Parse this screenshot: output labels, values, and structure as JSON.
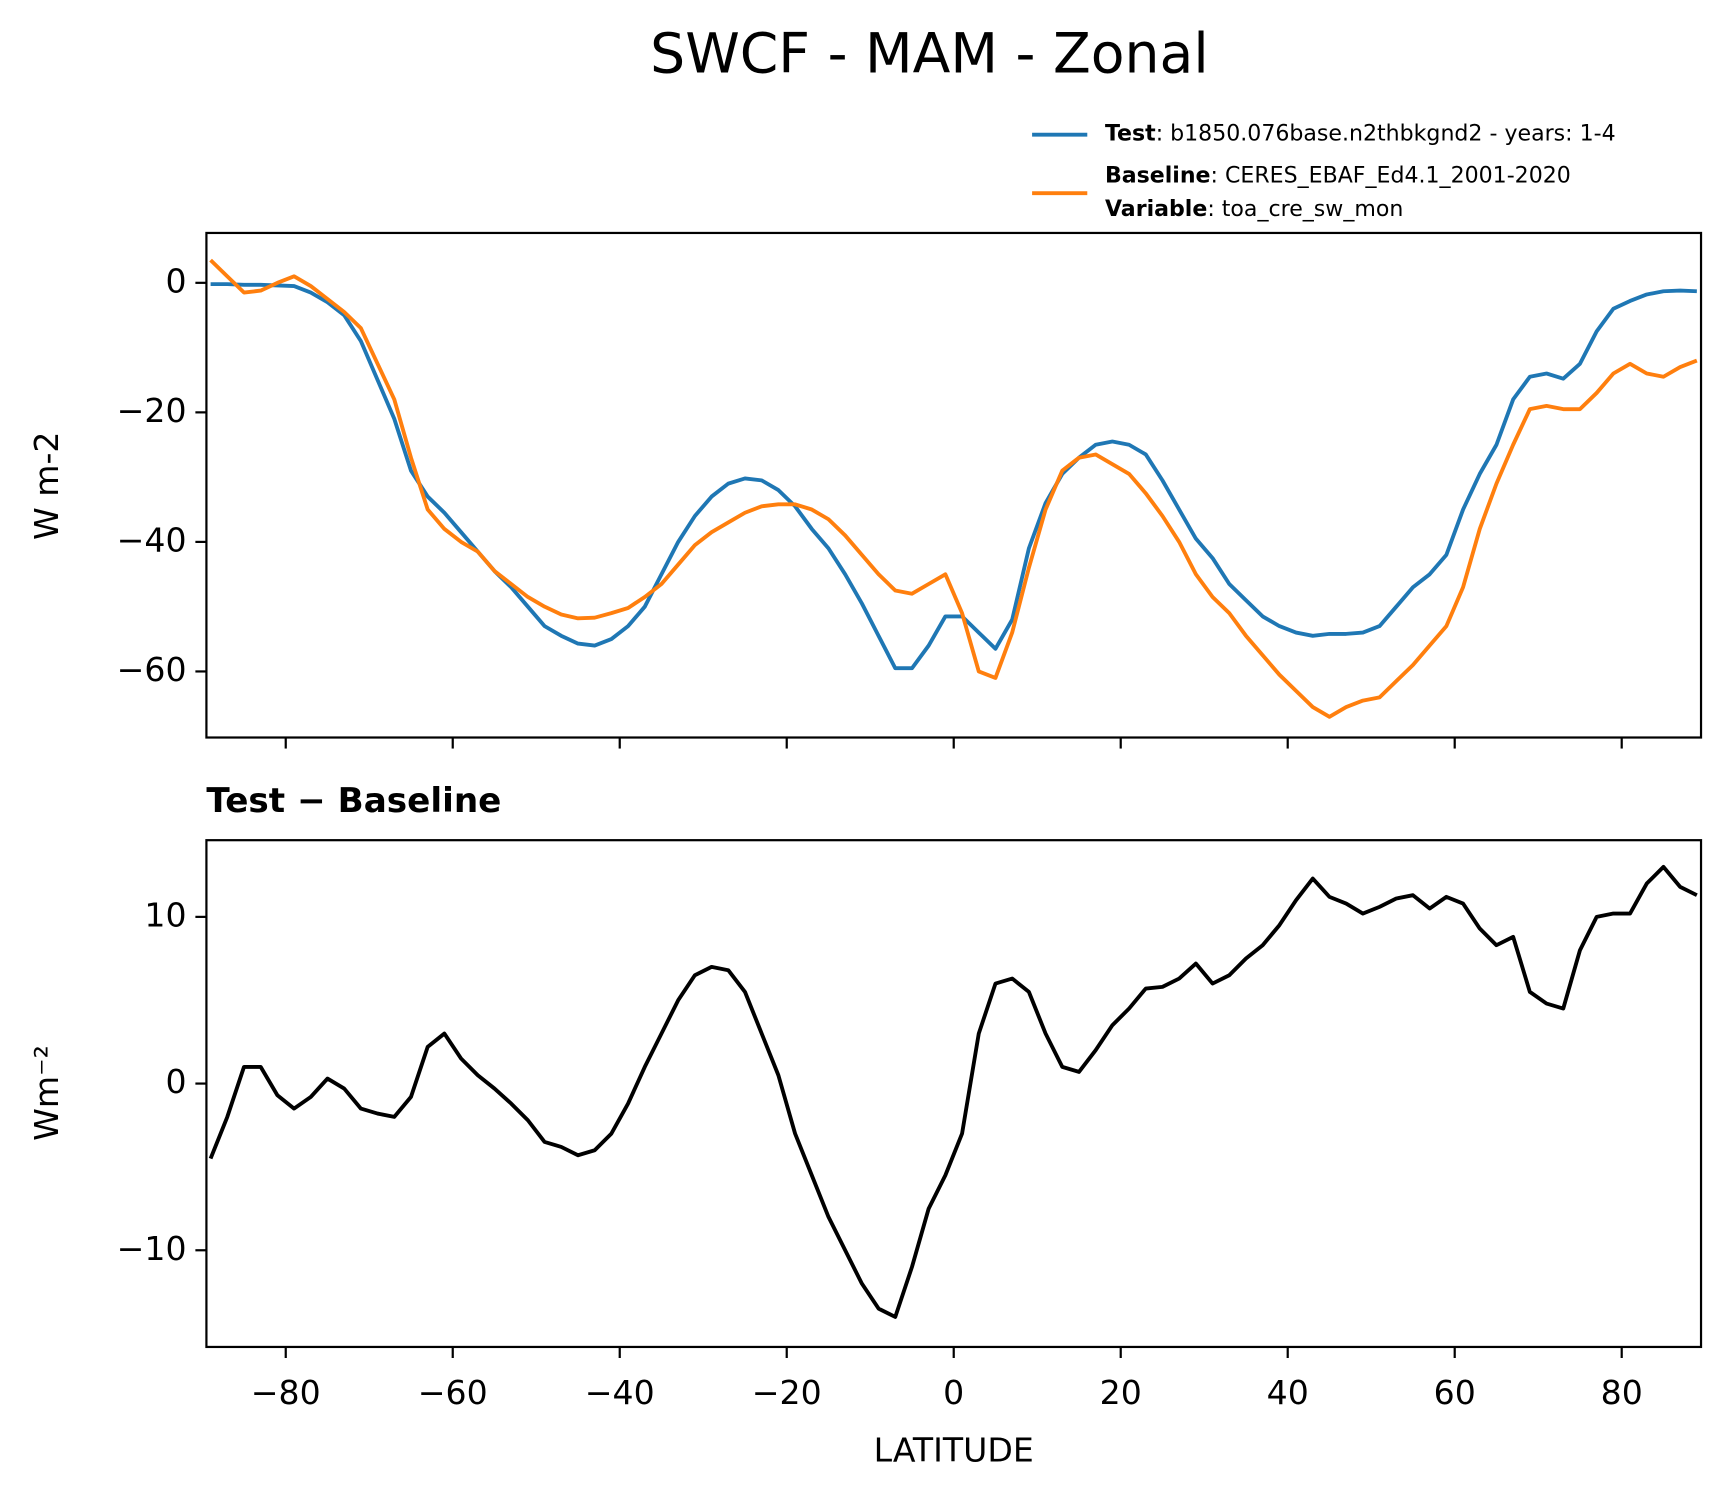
{
  "chart_data": [
    {
      "type": "line",
      "title": "SWCF - MAM - Zonal",
      "y_label": "W m-2",
      "x": [
        -89,
        -87,
        -85,
        -83,
        -81,
        -79,
        -77,
        -75,
        -73,
        -71,
        -69,
        -67,
        -65,
        -63,
        -61,
        -59,
        -57,
        -55,
        -53,
        -51,
        -49,
        -47,
        -45,
        -43,
        -41,
        -39,
        -37,
        -35,
        -33,
        -31,
        -29,
        -27,
        -25,
        -23,
        -21,
        -19,
        -17,
        -15,
        -13,
        -11,
        -9,
        -7,
        -5,
        -3,
        -1,
        1,
        3,
        5,
        7,
        9,
        11,
        13,
        15,
        17,
        19,
        21,
        23,
        25,
        27,
        29,
        31,
        33,
        35,
        37,
        39,
        41,
        43,
        45,
        47,
        49,
        51,
        53,
        55,
        57,
        59,
        61,
        63,
        65,
        67,
        69,
        71,
        73,
        75,
        77,
        79,
        81,
        83,
        85,
        87,
        89
      ],
      "series": [
        {
          "name": "Test",
          "label": ": b1850.076base.n2thbkgnd2 - years: 1-4",
          "color": "#1f77b4",
          "values": [
            -0.2,
            -0.2,
            -0.3,
            -0.3,
            -0.4,
            -0.5,
            -1.5,
            -3,
            -5,
            -9,
            -15,
            -21,
            -29,
            -33,
            -35.5,
            -38.5,
            -41.5,
            -44.5,
            -47,
            -50,
            -53,
            -54.5,
            -55.7,
            -56,
            -55,
            -53,
            -50,
            -45,
            -40,
            -36,
            -33,
            -31,
            -30.2,
            -30.5,
            -32,
            -34.5,
            -38,
            -41,
            -45,
            -49.5,
            -54.5,
            -59.5,
            -59.5,
            -56,
            -51.5,
            -51.5,
            -54,
            -56.5,
            -52,
            -41,
            -34,
            -29.5,
            -27,
            -25,
            -24.5,
            -25,
            -26.5,
            -30.5,
            -35,
            -39.5,
            -42.5,
            -46.5,
            -49,
            -51.5,
            -53,
            -54,
            -54.5,
            -54.2,
            -54.2,
            -54,
            -53,
            -50,
            -47,
            -45,
            -42,
            -35,
            -29.5,
            -25,
            -18,
            -14.5,
            -14,
            -14.8,
            -12.5,
            -7.5,
            -4,
            -2.8,
            -1.8,
            -1.3,
            -1.2,
            -1.3
          ]
        },
        {
          "name": "Baseline",
          "label": ": CERES_EBAF_Ed4.1_2001-2020",
          "color": "#ff7f0e",
          "values": [
            3.5,
            1,
            -1.5,
            -1.2,
            0,
            1,
            -0.5,
            -2.5,
            -4.5,
            -7,
            -12.5,
            -18,
            -27,
            -35,
            -38,
            -40,
            -41.5,
            -44.5,
            -46.5,
            -48.5,
            -50,
            -51.2,
            -51.8,
            -51.7,
            -51,
            -50.2,
            -48.5,
            -46.5,
            -43.5,
            -40.5,
            -38.5,
            -37,
            -35.5,
            -34.5,
            -34.2,
            -34.2,
            -35,
            -36.5,
            -39,
            -42,
            -45,
            -47.5,
            -48,
            -46.5,
            -45,
            -51,
            -60,
            -61,
            -54,
            -44,
            -35,
            -29,
            -27,
            -26.5,
            -28,
            -29.5,
            -32.5,
            -36,
            -40,
            -45,
            -48.5,
            -51,
            -54.5,
            -57.5,
            -60.5,
            -63,
            -65.5,
            -67,
            -65.5,
            -64.5,
            -64,
            -61.5,
            -59,
            -56,
            -53,
            -47,
            -38,
            -31,
            -25,
            -19.5,
            -19,
            -19.5,
            -19.5,
            -17,
            -14,
            -12.5,
            -14,
            -14.5,
            -13,
            -12
          ]
        }
      ],
      "legend_note": {
        "name": "Variable",
        "label": ": toa_cre_sw_mon"
      },
      "xlim": [
        -89.5,
        89.5
      ],
      "xticks": [
        -80,
        -60,
        -40,
        -20,
        0,
        20,
        40,
        60,
        80
      ],
      "ylim": [
        -70.2,
        7.7
      ],
      "yticks": [
        {
          "value": -60,
          "label": "−60"
        },
        {
          "value": -40,
          "label": "−40"
        },
        {
          "value": -20,
          "label": "−20"
        },
        0
      ]
    },
    {
      "type": "line",
      "title": "Test − Baseline",
      "y_label": "Wm⁻²",
      "x_label": "LATITUDE",
      "x": [
        -89,
        -87,
        -85,
        -83,
        -81,
        -79,
        -77,
        -75,
        -73,
        -71,
        -69,
        -67,
        -65,
        -63,
        -61,
        -59,
        -57,
        -55,
        -53,
        -51,
        -49,
        -47,
        -45,
        -43,
        -41,
        -39,
        -37,
        -35,
        -33,
        -31,
        -29,
        -27,
        -25,
        -23,
        -21,
        -19,
        -17,
        -15,
        -13,
        -11,
        -9,
        -7,
        -5,
        -3,
        -1,
        1,
        3,
        5,
        7,
        9,
        11,
        13,
        15,
        17,
        19,
        21,
        23,
        25,
        27,
        29,
        31,
        33,
        35,
        37,
        39,
        41,
        43,
        45,
        47,
        49,
        51,
        53,
        55,
        57,
        59,
        61,
        63,
        65,
        67,
        69,
        71,
        73,
        75,
        77,
        79,
        81,
        83,
        85,
        87,
        89
      ],
      "series": [
        {
          "color": "#000000",
          "values": [
            -4.5,
            -2,
            1,
            1,
            -0.7,
            -1.5,
            -0.8,
            0.3,
            -0.3,
            -1.5,
            -1.8,
            -2,
            -0.8,
            2.2,
            3,
            1.5,
            0.5,
            -0.3,
            -1.2,
            -2.2,
            -3.5,
            -3.8,
            -4.3,
            -4,
            -3,
            -1.2,
            1,
            3,
            5,
            6.5,
            7,
            6.8,
            5.5,
            3,
            0.5,
            -3,
            -5.5,
            -8,
            -10,
            -12,
            -13.5,
            -14,
            -11,
            -7.5,
            -5.5,
            -3,
            3,
            6,
            6.3,
            5.5,
            3,
            1,
            0.7,
            2,
            3.5,
            4.5,
            5.7,
            5.8,
            6.3,
            7.2,
            6,
            6.5,
            7.5,
            8.3,
            9.5,
            11,
            12.3,
            11.2,
            10.8,
            10.2,
            10.6,
            11.1,
            11.3,
            10.5,
            11.2,
            10.8,
            9.3,
            8.3,
            8.8,
            5.5,
            4.8,
            4.5,
            8,
            10,
            10.2,
            10.2,
            12,
            13,
            11.8,
            11.3
          ]
        }
      ],
      "xlim": [
        -89.5,
        89.5
      ],
      "xticks": [
        {
          "value": -80,
          "label": "−80"
        },
        {
          "value": -60,
          "label": "−60"
        },
        {
          "value": -40,
          "label": "−40"
        },
        {
          "value": -20,
          "label": "−20"
        },
        0,
        20,
        40,
        60,
        80
      ],
      "ylim": [
        -15.8,
        14.6
      ],
      "yticks": [
        {
          "value": -10,
          "label": "−10"
        },
        0,
        10
      ]
    }
  ]
}
